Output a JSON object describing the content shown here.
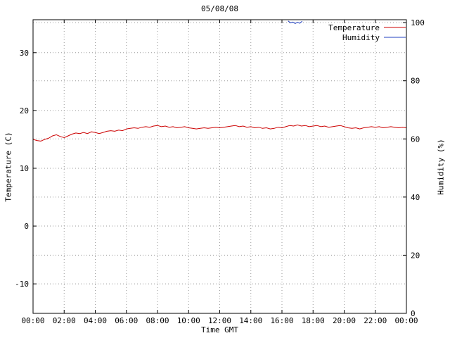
{
  "chart_data": {
    "type": "line",
    "title": "05/08/08",
    "xlabel": "Time GMT",
    "ylabel_left": "Temperature (C)",
    "ylabel_right": "Humidity (%)",
    "x_range": [
      0,
      24
    ],
    "left_range": [
      -15.1,
      35.7
    ],
    "right_range": [
      0,
      101
    ],
    "x_tick_hours": [
      0,
      2,
      4,
      6,
      8,
      10,
      12,
      14,
      16,
      18,
      20,
      22,
      24
    ],
    "x_tick_labels": [
      "00:00",
      "02:00",
      "04:00",
      "06:00",
      "08:00",
      "10:00",
      "12:00",
      "14:00",
      "16:00",
      "18:00",
      "20:00",
      "22:00",
      "00:00"
    ],
    "left_ticks": [
      -10,
      0,
      10,
      20,
      30
    ],
    "left_tick_labels": [
      "-10",
      "0",
      "10",
      "20",
      "30"
    ],
    "right_ticks": [
      0,
      20,
      40,
      60,
      80,
      100
    ],
    "right_tick_labels": [
      "0",
      "20",
      "40",
      "60",
      "80",
      "100"
    ],
    "grid": true,
    "grid_color": "#9a9a9a",
    "border_color": "#000000",
    "legend_position": "top-right",
    "series": [
      {
        "name": "Temperature",
        "axis": "left",
        "color": "#cc0000",
        "x_start": 0,
        "x_step": 0.25,
        "values": [
          15.0,
          14.8,
          14.7,
          15.0,
          15.2,
          15.6,
          15.8,
          15.5,
          15.3,
          15.6,
          15.9,
          16.1,
          16.0,
          16.2,
          16.0,
          16.3,
          16.2,
          16.0,
          16.2,
          16.4,
          16.5,
          16.4,
          16.6,
          16.5,
          16.8,
          16.9,
          17.0,
          16.9,
          17.1,
          17.2,
          17.1,
          17.3,
          17.4,
          17.2,
          17.3,
          17.1,
          17.2,
          17.0,
          17.1,
          17.2,
          17.0,
          16.9,
          16.8,
          16.9,
          17.0,
          16.9,
          17.0,
          17.1,
          17.0,
          17.1,
          17.2,
          17.3,
          17.4,
          17.2,
          17.3,
          17.1,
          17.2,
          17.0,
          17.1,
          16.9,
          17.0,
          16.8,
          16.9,
          17.1,
          17.0,
          17.2,
          17.4,
          17.3,
          17.5,
          17.3,
          17.4,
          17.2,
          17.3,
          17.4,
          17.2,
          17.3,
          17.1,
          17.2,
          17.3,
          17.4,
          17.2,
          17.0,
          16.9,
          17.0,
          16.8,
          17.0,
          17.1,
          17.2,
          17.1,
          17.2,
          17.0,
          17.1,
          17.2,
          17.1,
          17.0,
          17.1,
          17.0
        ]
      },
      {
        "name": "Humidity",
        "axis": "right",
        "color": "#2040c0",
        "x": [
          16.4,
          16.55,
          16.7,
          16.85,
          17.0,
          17.15,
          17.3
        ],
        "values": [
          100.6,
          99.9,
          100.2,
          99.7,
          100.1,
          99.8,
          100.5
        ]
      }
    ]
  }
}
